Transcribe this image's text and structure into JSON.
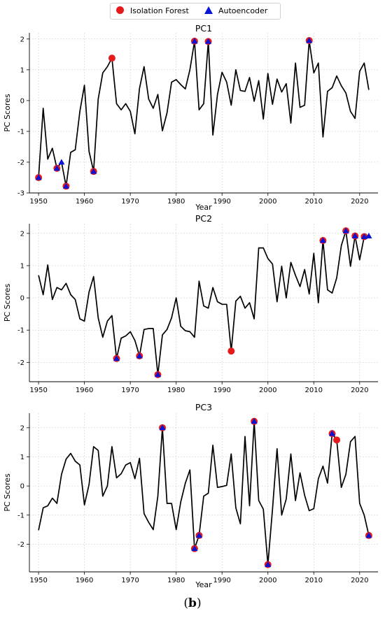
{
  "legend": {
    "isolation_label": "Isolation Forest",
    "autoencoder_label": "Autoencoder",
    "isolation_color": "#e41a1c",
    "autoencoder_color": "#0a14d4"
  },
  "caption": {
    "open": "(",
    "letter": "b",
    "close": ")"
  },
  "chart_data": [
    {
      "type": "line",
      "title": "PC1",
      "xlabel": "Year",
      "ylabel": "PC Scores",
      "xlim": [
        1948,
        2024
      ],
      "ylim": [
        -3,
        2.2
      ],
      "xticks": [
        1950,
        1960,
        1970,
        1980,
        1990,
        2000,
        2010,
        2020
      ],
      "yticks": [
        -3,
        -2,
        -1,
        0,
        1,
        2
      ],
      "grid": true,
      "line_color": "#000000",
      "x": [
        1950,
        1951,
        1952,
        1953,
        1954,
        1955,
        1956,
        1957,
        1958,
        1959,
        1960,
        1961,
        1962,
        1963,
        1964,
        1965,
        1966,
        1967,
        1968,
        1969,
        1970,
        1971,
        1972,
        1973,
        1974,
        1975,
        1976,
        1977,
        1978,
        1979,
        1980,
        1981,
        1982,
        1983,
        1984,
        1985,
        1986,
        1987,
        1988,
        1989,
        1990,
        1991,
        1992,
        1993,
        1994,
        1995,
        1996,
        1997,
        1998,
        1999,
        2000,
        2001,
        2002,
        2003,
        2004,
        2005,
        2006,
        2007,
        2008,
        2009,
        2010,
        2011,
        2012,
        2013,
        2014,
        2015,
        2016,
        2017,
        2018,
        2019,
        2020,
        2021,
        2022
      ],
      "y": [
        -2.5,
        -0.25,
        -1.9,
        -1.55,
        -2.2,
        -2.0,
        -2.78,
        -1.68,
        -1.6,
        -0.35,
        0.5,
        -1.65,
        -2.3,
        0.05,
        0.9,
        1.1,
        1.38,
        -0.1,
        -0.3,
        -0.1,
        -0.35,
        -1.08,
        0.4,
        1.1,
        0.05,
        -0.25,
        0.2,
        -0.98,
        -0.4,
        0.6,
        0.68,
        0.52,
        0.38,
        1.0,
        1.93,
        -0.3,
        -0.1,
        1.92,
        -1.12,
        0.2,
        0.92,
        0.6,
        -0.15,
        1.0,
        0.33,
        0.3,
        0.75,
        -0.02,
        0.65,
        -0.6,
        0.88,
        -0.12,
        0.7,
        0.28,
        0.55,
        -0.73,
        1.22,
        -0.22,
        -0.15,
        1.95,
        0.9,
        1.22,
        -1.18,
        0.3,
        0.42,
        0.8,
        0.48,
        0.25,
        -0.35,
        -0.58,
        0.95,
        1.22,
        0.35
      ],
      "isolation_forest": [
        [
          1950,
          -2.5
        ],
        [
          1954,
          -2.2
        ],
        [
          1956,
          -2.78
        ],
        [
          1962,
          -2.3
        ],
        [
          1966,
          1.38
        ],
        [
          1984,
          1.93
        ],
        [
          1987,
          1.92
        ],
        [
          2009,
          1.95
        ]
      ],
      "autoencoder": [
        [
          1950,
          -2.5
        ],
        [
          1954,
          -2.2
        ],
        [
          1955,
          -2.0
        ],
        [
          1956,
          -2.78
        ],
        [
          1962,
          -2.3
        ],
        [
          1984,
          1.93
        ],
        [
          1987,
          1.92
        ],
        [
          2009,
          1.95
        ]
      ]
    },
    {
      "type": "line",
      "title": "PC2",
      "xlabel": "",
      "ylabel": "PC Scores",
      "xlim": [
        1948,
        2024
      ],
      "ylim": [
        -2.6,
        2.3
      ],
      "xticks": [
        1950,
        1960,
        1970,
        1980,
        1990,
        2000,
        2010,
        2020
      ],
      "yticks": [
        -2,
        -1,
        0,
        1,
        2
      ],
      "grid": true,
      "line_color": "#000000",
      "x": [
        1950,
        1951,
        1952,
        1953,
        1954,
        1955,
        1956,
        1957,
        1958,
        1959,
        1960,
        1961,
        1962,
        1963,
        1964,
        1965,
        1966,
        1967,
        1968,
        1969,
        1970,
        1971,
        1972,
        1973,
        1974,
        1975,
        1976,
        1977,
        1978,
        1979,
        1980,
        1981,
        1982,
        1983,
        1984,
        1985,
        1986,
        1987,
        1988,
        1989,
        1990,
        1991,
        1992,
        1993,
        1994,
        1995,
        1996,
        1997,
        1998,
        1999,
        2000,
        2001,
        2002,
        2003,
        2004,
        2005,
        2006,
        2007,
        2008,
        2009,
        2010,
        2011,
        2012,
        2013,
        2014,
        2015,
        2016,
        2017,
        2018,
        2019,
        2020,
        2021,
        2022
      ],
      "y": [
        0.7,
        0.1,
        1.02,
        -0.05,
        0.32,
        0.25,
        0.45,
        0.1,
        -0.05,
        -0.65,
        -0.72,
        0.18,
        0.66,
        -0.62,
        -1.22,
        -0.72,
        -0.55,
        -1.88,
        -1.25,
        -1.18,
        -1.05,
        -1.32,
        -1.8,
        -0.98,
        -0.95,
        -0.95,
        -2.38,
        -1.15,
        -0.98,
        -0.62,
        0.0,
        -0.88,
        -1.02,
        -1.05,
        -1.22,
        0.52,
        -0.25,
        -0.32,
        0.32,
        -0.12,
        -0.2,
        -0.2,
        -1.65,
        -0.1,
        0.05,
        -0.32,
        -0.15,
        -0.65,
        1.55,
        1.55,
        1.22,
        1.05,
        -0.12,
        0.98,
        0.0,
        1.1,
        0.7,
        0.35,
        0.88,
        0.12,
        1.38,
        -0.15,
        1.78,
        0.25,
        0.15,
        0.62,
        1.62,
        2.08,
        0.98,
        1.92,
        1.18,
        1.9,
        1.92
      ],
      "isolation_forest": [
        [
          1967,
          -1.88
        ],
        [
          1972,
          -1.8
        ],
        [
          1976,
          -2.38
        ],
        [
          1992,
          -1.65
        ],
        [
          2012,
          1.78
        ],
        [
          2017,
          2.08
        ],
        [
          2019,
          1.92
        ],
        [
          2021,
          1.9
        ]
      ],
      "autoencoder": [
        [
          1967,
          -1.88
        ],
        [
          1972,
          -1.8
        ],
        [
          1976,
          -2.38
        ],
        [
          2012,
          1.78
        ],
        [
          2017,
          2.08
        ],
        [
          2019,
          1.92
        ],
        [
          2021,
          1.9
        ],
        [
          2022,
          1.92
        ]
      ]
    },
    {
      "type": "line",
      "title": "PC3",
      "xlabel": "Year",
      "ylabel": "PC Scores",
      "xlim": [
        1948,
        2024
      ],
      "ylim": [
        -2.95,
        2.5
      ],
      "xticks": [
        1950,
        1960,
        1970,
        1980,
        1990,
        2000,
        2010,
        2020
      ],
      "yticks": [
        -2,
        -1,
        0,
        1,
        2
      ],
      "grid": true,
      "line_color": "#000000",
      "x": [
        1950,
        1951,
        1952,
        1953,
        1954,
        1955,
        1956,
        1957,
        1958,
        1959,
        1960,
        1961,
        1962,
        1963,
        1964,
        1965,
        1966,
        1967,
        1968,
        1969,
        1970,
        1971,
        1972,
        1973,
        1974,
        1975,
        1976,
        1977,
        1978,
        1979,
        1980,
        1981,
        1982,
        1983,
        1984,
        1985,
        1986,
        1987,
        1988,
        1989,
        1990,
        1991,
        1992,
        1993,
        1994,
        1995,
        1996,
        1997,
        1998,
        1999,
        2000,
        2001,
        2002,
        2003,
        2004,
        2005,
        2006,
        2007,
        2008,
        2009,
        2010,
        2011,
        2012,
        2013,
        2014,
        2015,
        2016,
        2017,
        2018,
        2019,
        2020,
        2021,
        2022
      ],
      "y": [
        -1.52,
        -0.75,
        -0.68,
        -0.42,
        -0.6,
        0.4,
        0.92,
        1.12,
        0.85,
        0.72,
        -0.65,
        0.05,
        1.35,
        1.22,
        -0.35,
        0.0,
        1.35,
        0.28,
        0.42,
        0.72,
        0.8,
        0.25,
        0.95,
        -0.95,
        -1.25,
        -1.5,
        -0.35,
        2.0,
        -0.6,
        -0.6,
        -1.5,
        -0.55,
        0.1,
        0.55,
        -2.15,
        -1.7,
        -0.35,
        -0.25,
        1.4,
        -0.05,
        -0.02,
        0.02,
        1.1,
        -0.75,
        -1.3,
        1.7,
        -0.68,
        2.22,
        -0.5,
        -0.8,
        -2.7,
        -0.8,
        1.28,
        -1.0,
        -0.45,
        1.1,
        -0.5,
        0.45,
        -0.32,
        -0.85,
        -0.78,
        0.25,
        0.68,
        0.1,
        1.8,
        1.58,
        -0.05,
        0.4,
        1.52,
        1.7,
        -0.6,
        -1.0,
        -1.7
      ],
      "isolation_forest": [
        [
          1977,
          2.0
        ],
        [
          1984,
          -2.15
        ],
        [
          1985,
          -1.7
        ],
        [
          1997,
          2.22
        ],
        [
          2000,
          -2.7
        ],
        [
          2014,
          1.8
        ],
        [
          2015,
          1.58
        ],
        [
          2022,
          -1.7
        ]
      ],
      "autoencoder": [
        [
          1977,
          2.0
        ],
        [
          1984,
          -2.15
        ],
        [
          1985,
          -1.7
        ],
        [
          1997,
          2.22
        ],
        [
          2000,
          -2.7
        ],
        [
          2014,
          1.8
        ],
        [
          2022,
          -1.7
        ]
      ]
    }
  ]
}
